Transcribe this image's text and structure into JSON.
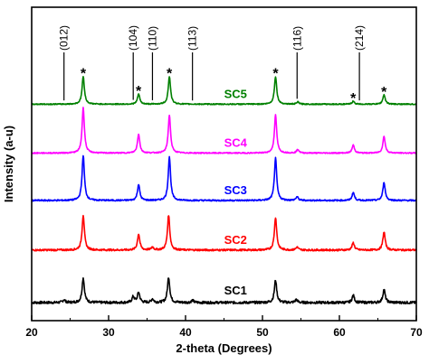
{
  "chart_data": {
    "type": "line",
    "xlabel": "2-theta (Degrees)",
    "ylabel": "Intensity (a-u)",
    "xlim": [
      20,
      70
    ],
    "x_ticks": [
      20,
      30,
      40,
      50,
      60,
      70
    ],
    "y_ticks_shown": false,
    "grid": false,
    "legend": "none",
    "series": [
      {
        "name": "SC1",
        "color": "#000000",
        "baseline": 0.0,
        "noise": 0.035,
        "peaks": [
          {
            "x": 24.2,
            "h": 0.04
          },
          {
            "x": 26.7,
            "h": 0.34
          },
          {
            "x": 33.2,
            "h": 0.08
          },
          {
            "x": 33.9,
            "h": 0.14
          },
          {
            "x": 35.7,
            "h": 0.05
          },
          {
            "x": 37.8,
            "h": 0.35
          },
          {
            "x": 40.9,
            "h": 0.03
          },
          {
            "x": 51.7,
            "h": 0.31
          },
          {
            "x": 54.4,
            "h": 0.04
          },
          {
            "x": 61.8,
            "h": 0.1
          },
          {
            "x": 65.8,
            "h": 0.18
          }
        ]
      },
      {
        "name": "SC2",
        "color": "#ff0000",
        "baseline": 0.72,
        "noise": 0.025,
        "peaks": [
          {
            "x": 26.7,
            "h": 0.48
          },
          {
            "x": 33.9,
            "h": 0.22
          },
          {
            "x": 35.7,
            "h": 0.04
          },
          {
            "x": 37.8,
            "h": 0.48
          },
          {
            "x": 51.7,
            "h": 0.45
          },
          {
            "x": 54.5,
            "h": 0.04
          },
          {
            "x": 61.8,
            "h": 0.1
          },
          {
            "x": 65.8,
            "h": 0.25
          }
        ]
      },
      {
        "name": "SC3",
        "color": "#0000ff",
        "baseline": 1.4,
        "noise": 0.02,
        "peaks": [
          {
            "x": 26.7,
            "h": 0.62
          },
          {
            "x": 33.9,
            "h": 0.22
          },
          {
            "x": 37.9,
            "h": 0.6
          },
          {
            "x": 51.7,
            "h": 0.58
          },
          {
            "x": 54.5,
            "h": 0.05
          },
          {
            "x": 61.8,
            "h": 0.11
          },
          {
            "x": 65.8,
            "h": 0.25
          }
        ]
      },
      {
        "name": "SC4",
        "color": "#ff00ff",
        "baseline": 2.05,
        "noise": 0.015,
        "peaks": [
          {
            "x": 26.7,
            "h": 0.62
          },
          {
            "x": 33.9,
            "h": 0.26
          },
          {
            "x": 37.9,
            "h": 0.52
          },
          {
            "x": 51.7,
            "h": 0.52
          },
          {
            "x": 54.6,
            "h": 0.05
          },
          {
            "x": 61.8,
            "h": 0.11
          },
          {
            "x": 65.8,
            "h": 0.23
          }
        ]
      },
      {
        "name": "SC5",
        "color": "#008000",
        "baseline": 2.72,
        "noise": 0.015,
        "peaks": [
          {
            "x": 26.7,
            "h": 0.38
          },
          {
            "x": 33.9,
            "h": 0.14
          },
          {
            "x": 37.9,
            "h": 0.38
          },
          {
            "x": 51.7,
            "h": 0.38
          },
          {
            "x": 54.6,
            "h": 0.03
          },
          {
            "x": 61.8,
            "h": 0.04
          },
          {
            "x": 65.8,
            "h": 0.13
          }
        ]
      }
    ],
    "peak_labels": [
      {
        "text": "(012)",
        "x": 24.2
      },
      {
        "text": "(104)",
        "x": 33.2
      },
      {
        "text": "(110)",
        "x": 35.7
      },
      {
        "text": "(113)",
        "x": 40.9
      },
      {
        "text": "(116)",
        "x": 54.5
      },
      {
        "text": "(214)",
        "x": 62.6
      }
    ],
    "star_markers": [
      26.7,
      33.9,
      37.9,
      51.7,
      61.8,
      65.8
    ],
    "star_symbol": "*"
  }
}
